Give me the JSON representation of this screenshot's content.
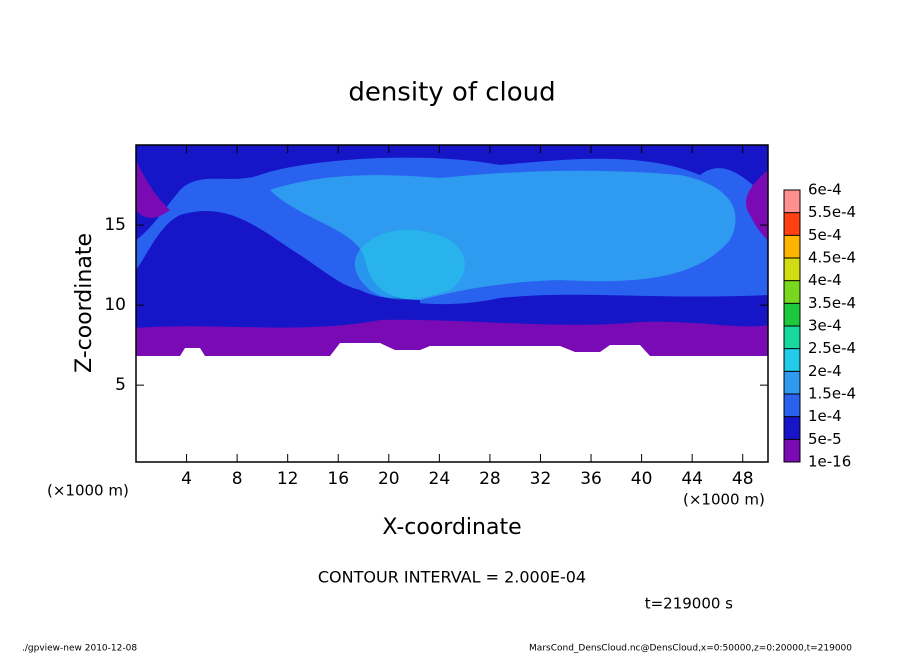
{
  "chart_data": {
    "type": "contour",
    "title": "density of cloud",
    "xlabel": "X-coordinate",
    "ylabel": "Z-coordinate",
    "x_unit": "(×1000 m)",
    "y_unit": "(×1000 m)",
    "xlim": [
      0,
      50
    ],
    "ylim": [
      0.2,
      20
    ],
    "xticks": [
      4,
      8,
      12,
      16,
      20,
      24,
      28,
      32,
      36,
      40,
      44,
      48
    ],
    "yticks": [
      5,
      10,
      15
    ],
    "colorbar": {
      "levels": [
        {
          "value": 1e-16,
          "label": "1e-16"
        },
        {
          "value": 5e-05,
          "label": "5e-5"
        },
        {
          "value": 0.0001,
          "label": "1e-4"
        },
        {
          "value": 0.00015,
          "label": "1.5e-4"
        },
        {
          "value": 0.0002,
          "label": "2e-4"
        },
        {
          "value": 0.00025,
          "label": "2.5e-4"
        },
        {
          "value": 0.0003,
          "label": "3e-4"
        },
        {
          "value": 0.00035,
          "label": "3.5e-4"
        },
        {
          "value": 0.0004,
          "label": "4e-4"
        },
        {
          "value": 0.00045,
          "label": "4.5e-4"
        },
        {
          "value": 0.0005,
          "label": "5e-4"
        },
        {
          "value": 0.00055,
          "label": "5.5e-4"
        },
        {
          "value": 0.0006,
          "label": "6e-4"
        }
      ],
      "colors": [
        "#7a0ab4",
        "#1616c8",
        "#2a62f0",
        "#2e9af0",
        "#22cce8",
        "#18d8a0",
        "#1ec83c",
        "#78d81e",
        "#d2dc14",
        "#ffb400",
        "#ff4010",
        "#ff9090"
      ]
    },
    "annotations": {
      "contour_interval": "CONTOUR INTERVAL = 2.000E-04",
      "time": "t=219000 s"
    },
    "footer": {
      "left": "./gpview-new   2010-12-08",
      "right": "MarsCond_DensCloud.nc@DensCloud,x=0:50000,z=0:20000,t=219000"
    }
  }
}
